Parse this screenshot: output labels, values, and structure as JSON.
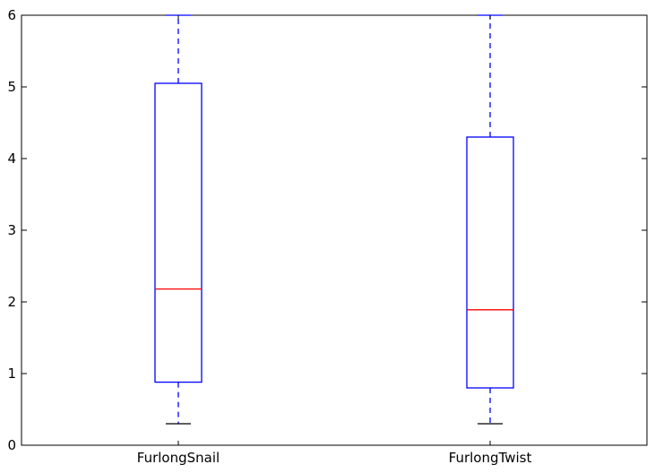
{
  "chart_data": {
    "type": "box",
    "title": "",
    "xlabel": "",
    "ylabel": "",
    "ylim": [
      0,
      6
    ],
    "yticks": [
      0,
      1,
      2,
      3,
      4,
      5,
      6
    ],
    "grid": false,
    "categories": [
      "FurlongSnail",
      "FurlongTwist"
    ],
    "boxes": [
      {
        "name": "FurlongSnail",
        "whisker_low": 0.3,
        "q1": 0.88,
        "median": 2.18,
        "q3": 5.05,
        "whisker_high": 6.0
      },
      {
        "name": "FurlongTwist",
        "whisker_low": 0.3,
        "q1": 0.8,
        "median": 1.89,
        "q3": 4.3,
        "whisker_high": 6.0
      }
    ],
    "colors": {
      "box": "#0000ff",
      "median": "#ff0000",
      "cap_low": "#000000",
      "axes": "#000000"
    }
  }
}
